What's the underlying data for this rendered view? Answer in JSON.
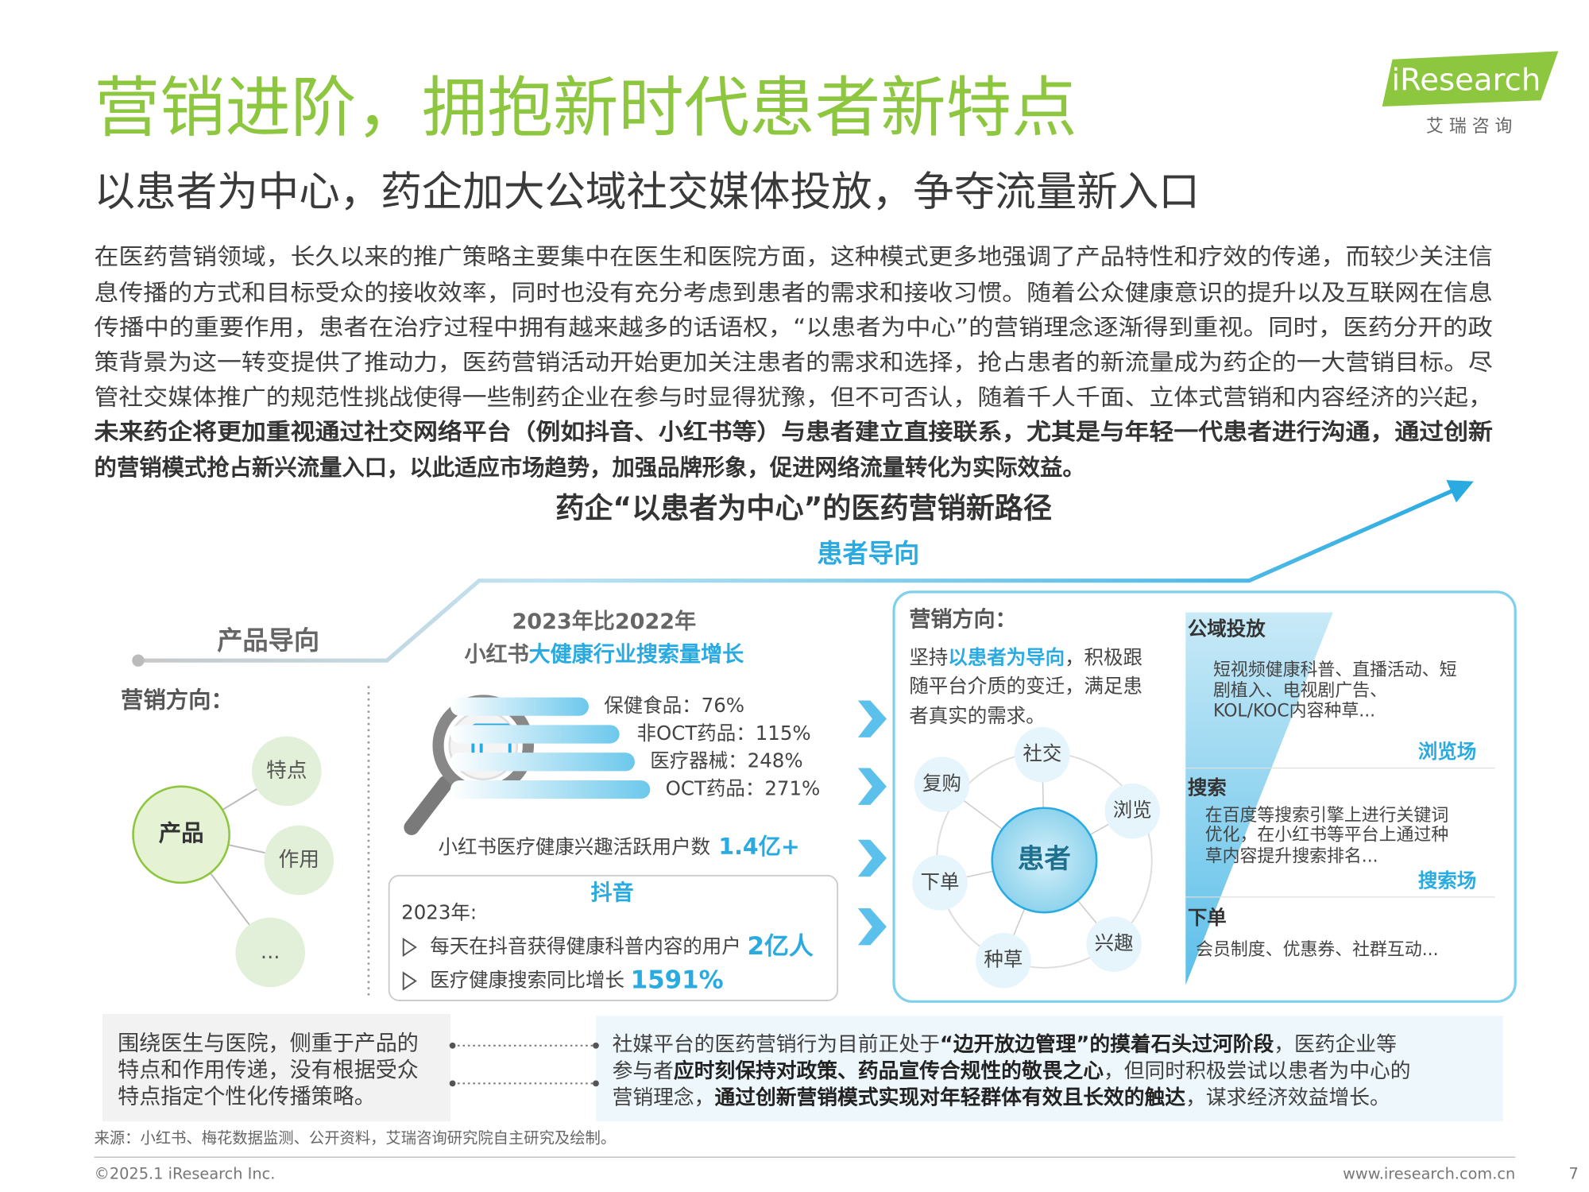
{
  "header": {
    "title": "营销进阶，拥抱新时代患者新特点",
    "subtitle": "以患者为中心，药企加大公域社交媒体投放，争夺流量新入口",
    "logo": "iResearch",
    "logo_cn": "艾 瑞 咨 询"
  },
  "intro": {
    "lines": [
      "在医药营销领域，长久以来的推广策略主要集中在医生和医院方面，这种模式更多地强调了产品特性和疗效的传递，而较少关注信",
      "息传播的方式和目标受众的接收效率，同时也没有充分考虑到患者的需求和接收习惯。随着公众健康意识的提升以及互联网在信息",
      "传播中的重要作用，患者在治疗过程中拥有越来越多的话语权，“以患者为中心”的营销理念逐渐得到重视。同时，医药分开的政",
      "策背景为这一转变提供了推动力，医药营销活动开始更加关注患者的需求和选择，抢占患者的新流量成为药企的一大营销目标。尽",
      "管社交媒体推广的规范性挑战使得一些制药企业在参与时显得犹豫，但不可否认，随着千人千面、立体式营销和内容经济的兴起，"
    ],
    "emphasis_lines": [
      "未来药企将更加重视通过社交网络平台（例如抖音、小红书等）与患者建立直接联系，尤其是与年轻一代患者进行沟通，通过创新",
      "的营销模式抢占新兴流量入口，以此适应市场趋势，加强品牌形象，促进网络流量转化为实际效益。"
    ]
  },
  "diagram": {
    "title": "药企“以患者为中心”的医药营销新路径",
    "patient_oriented": "患者导向",
    "product_oriented": "产品导向",
    "left": {
      "heading": "营销方向：",
      "center": "产品",
      "nodes": [
        "特点",
        "作用",
        "..."
      ]
    },
    "xiaohongshu": {
      "heading": "2023年比2022年",
      "subheading": [
        "小红书",
        "大健康行业搜索量增长"
      ],
      "items": [
        "保健食品：76%",
        "非OCT药品：115%",
        "医疗器械：248%",
        "OCT药品：271%"
      ],
      "users": [
        "小红书医疗健康兴趣活跃用户数",
        "1.4亿+"
      ]
    },
    "douyin": {
      "heading": "抖音",
      "year": "2023年:",
      "bullets": [
        [
          "每天在抖音获得健康科普内容的用户",
          "2亿人"
        ],
        [
          "医疗健康搜索同比增长",
          "1591%"
        ]
      ]
    },
    "right": {
      "heading": "营销方向：",
      "description": [
        [
          "坚持",
          "以患者为导向",
          "，积极跟"
        ],
        [
          "随平台介质的变迁，满足患"
        ],
        [
          "者真实的需求。"
        ]
      ],
      "center": "患者",
      "nodes": [
        "社交",
        "浏览",
        "兴趣",
        "种草",
        "下单",
        "复购"
      ]
    },
    "channels": [
      {
        "title": "公域投放",
        "lines": [
          "短视频健康科普、直播活动、短",
          "剧植入、电视剧广告、",
          "KOL/KOC内容种草..."
        ],
        "scene": "浏览场"
      },
      {
        "title": "搜索",
        "lines": [
          "在百度等搜索引擎上进行关键词",
          "优化，在小红书等平台上通过种",
          "草内容提升搜索排名..."
        ],
        "scene": "搜索场"
      },
      {
        "title": "下单",
        "lines": [
          "会员制度、优惠券、社群互动..."
        ]
      }
    ]
  },
  "summary": {
    "left": [
      "围绕医生与医院，侧重于产品的",
      "特点和作用传递，没有根据受众",
      "特点指定个性化传播策略。"
    ],
    "right": [
      [
        "社媒平台的医药营销行为目前正处于",
        "“边开放边管理”的摸着石头过河阶段",
        "，医药企业等"
      ],
      [
        "参与者",
        "应时刻保持对政策、药品宣传合规性的敬畏之心",
        "，但同时积极尝试以患者为中心的"
      ],
      [
        "营销理念，",
        "通过创新营销模式实现对年轻群体有效且长效的触达",
        "，谋求经济效益增长。"
      ]
    ]
  },
  "footer": {
    "source": "来源：小红书、梅花数据监测、公开资料，艾瑞咨询研究院自主研究及绘制。",
    "copyright": "©2025.1 iResearch Inc.",
    "website": "www.iresearch.com.cn",
    "page": "7"
  }
}
